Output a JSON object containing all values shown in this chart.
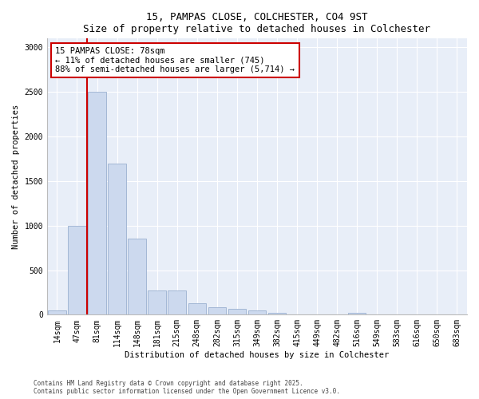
{
  "title1": "15, PAMPAS CLOSE, COLCHESTER, CO4 9ST",
  "title2": "Size of property relative to detached houses in Colchester",
  "xlabel": "Distribution of detached houses by size in Colchester",
  "ylabel": "Number of detached properties",
  "categories": [
    "14sqm",
    "47sqm",
    "81sqm",
    "114sqm",
    "148sqm",
    "181sqm",
    "215sqm",
    "248sqm",
    "282sqm",
    "315sqm",
    "349sqm",
    "382sqm",
    "415sqm",
    "449sqm",
    "482sqm",
    "516sqm",
    "549sqm",
    "583sqm",
    "616sqm",
    "650sqm",
    "683sqm"
  ],
  "values": [
    50,
    1000,
    2500,
    1700,
    850,
    270,
    270,
    130,
    80,
    65,
    50,
    25,
    0,
    0,
    0,
    25,
    0,
    0,
    0,
    0,
    0
  ],
  "bar_color": "#ccd9ee",
  "bar_edge_color": "#9ab0d0",
  "property_line_bar_index": 1,
  "property_line_color": "#cc0000",
  "annotation_text": "15 PAMPAS CLOSE: 78sqm\n← 11% of detached houses are smaller (745)\n88% of semi-detached houses are larger (5,714) →",
  "annotation_box_color": "#ffffff",
  "annotation_box_edge_color": "#cc0000",
  "ylim": [
    0,
    3100
  ],
  "yticks": [
    0,
    500,
    1000,
    1500,
    2000,
    2500,
    3000
  ],
  "footer1": "Contains HM Land Registry data © Crown copyright and database right 2025.",
  "footer2": "Contains public sector information licensed under the Open Government Licence v3.0.",
  "bg_color": "#ffffff",
  "plot_bg_color": "#e8eef8",
  "grid_color": "#ffffff",
  "title_fontsize": 9,
  "label_fontsize": 7.5,
  "tick_fontsize": 7,
  "footer_fontsize": 5.5
}
